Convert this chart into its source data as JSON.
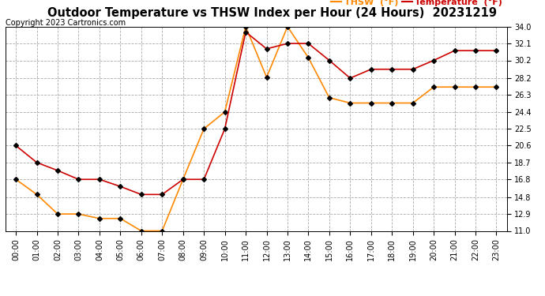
{
  "title": "Outdoor Temperature vs THSW Index per Hour (24 Hours)  20231219",
  "copyright": "Copyright 2023 Cartronics.com",
  "hours": [
    "00:00",
    "01:00",
    "02:00",
    "03:00",
    "04:00",
    "05:00",
    "06:00",
    "07:00",
    "08:00",
    "09:00",
    "10:00",
    "11:00",
    "12:00",
    "13:00",
    "14:00",
    "15:00",
    "16:00",
    "17:00",
    "18:00",
    "19:00",
    "20:00",
    "21:00",
    "22:00",
    "23:00"
  ],
  "temperature": [
    20.6,
    18.7,
    17.8,
    16.8,
    16.8,
    16.0,
    15.1,
    15.1,
    16.8,
    16.8,
    22.5,
    33.4,
    31.5,
    32.1,
    32.1,
    30.2,
    28.2,
    29.2,
    29.2,
    29.2,
    30.2,
    31.3,
    31.3,
    31.3
  ],
  "thsw": [
    16.8,
    15.1,
    12.9,
    12.9,
    12.4,
    12.4,
    11.0,
    11.0,
    16.8,
    22.5,
    24.4,
    34.0,
    28.3,
    34.0,
    30.5,
    26.0,
    25.4,
    25.4,
    25.4,
    25.4,
    27.2,
    27.2,
    27.2,
    27.2
  ],
  "temp_color": "#cc0000",
  "thsw_color": "#ff8800",
  "marker": "D",
  "marker_size": 3,
  "marker_color": "#000000",
  "ylim": [
    11.0,
    34.0
  ],
  "yticks": [
    11.0,
    12.9,
    14.8,
    16.8,
    18.7,
    20.6,
    22.5,
    24.4,
    26.3,
    28.2,
    30.2,
    32.1,
    34.0
  ],
  "grid_color": "#aaaaaa",
  "grid_style": "--",
  "bg_color": "#ffffff",
  "legend_thsw": "THSW  (°F)",
  "legend_temp": "Temperature  (°F)",
  "thsw_legend_color": "#ff8800",
  "temp_legend_color": "#cc0000",
  "title_fontsize": 10.5,
  "copyright_fontsize": 7,
  "tick_fontsize": 7,
  "legend_fontsize": 8
}
